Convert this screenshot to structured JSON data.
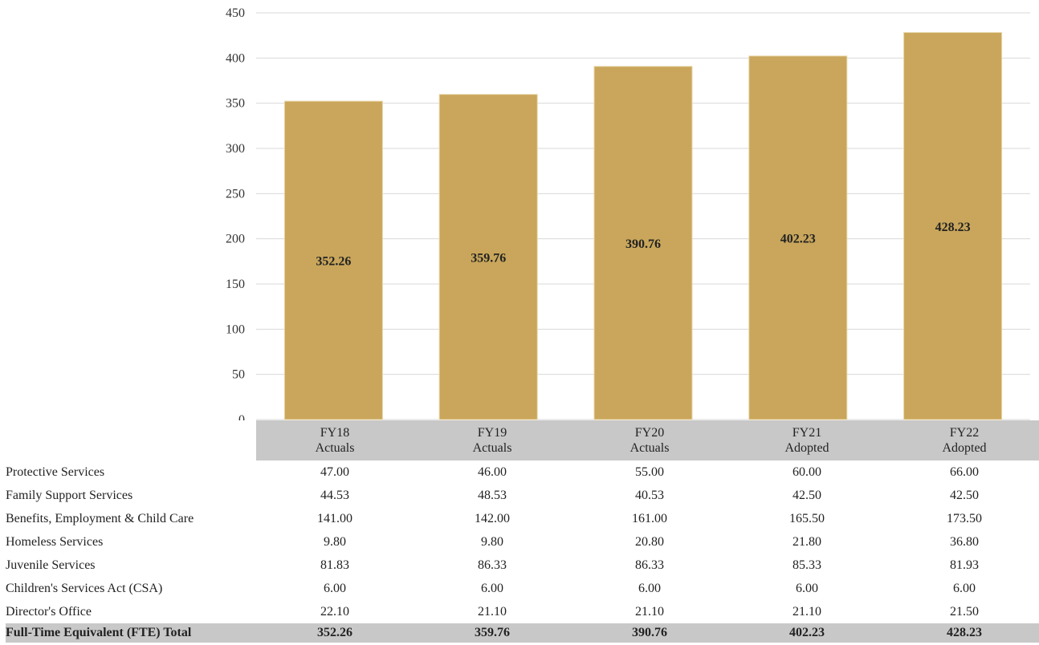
{
  "chart_data": {
    "type": "bar",
    "categories": [
      "FY18 Actuals",
      "FY19 Actuals",
      "FY20 Actuals",
      "FY21 Adopted",
      "FY22 Adopted"
    ],
    "category_lines": [
      [
        "FY18",
        "Actuals"
      ],
      [
        "FY19",
        "Actuals"
      ],
      [
        "FY20",
        "Actuals"
      ],
      [
        "FY21",
        "Adopted"
      ],
      [
        "FY22",
        "Adopted"
      ]
    ],
    "values": [
      352.26,
      359.76,
      390.76,
      402.23,
      428.23
    ],
    "value_labels": [
      "352.26",
      "359.76",
      "390.76",
      "402.23",
      "428.23"
    ],
    "ylim": [
      0,
      450
    ],
    "yticks": [
      0,
      50,
      100,
      150,
      200,
      250,
      300,
      350,
      400,
      450
    ],
    "grid": true,
    "bar_color": "#c9a65b"
  },
  "table": {
    "rows": [
      {
        "label": "Protective Services",
        "values": [
          "47.00",
          "46.00",
          "55.00",
          "60.00",
          "66.00"
        ]
      },
      {
        "label": "Family Support Services",
        "values": [
          "44.53",
          "48.53",
          "40.53",
          "42.50",
          "42.50"
        ]
      },
      {
        "label": "Benefits, Employment & Child Care",
        "values": [
          "141.00",
          "142.00",
          "161.00",
          "165.50",
          "173.50"
        ]
      },
      {
        "label": "Homeless Services",
        "values": [
          "9.80",
          "9.80",
          "20.80",
          "21.80",
          "36.80"
        ]
      },
      {
        "label": "Juvenile Services",
        "values": [
          "81.83",
          "86.33",
          "86.33",
          "85.33",
          "81.93"
        ]
      },
      {
        "label": "Children's Services Act (CSA)",
        "values": [
          "6.00",
          "6.00",
          "6.00",
          "6.00",
          "6.00"
        ]
      },
      {
        "label": "Director's Office",
        "values": [
          "22.10",
          "21.10",
          "21.10",
          "21.10",
          "21.50"
        ]
      }
    ],
    "total": {
      "label": "Full-Time Equivalent (FTE) Total",
      "values": [
        "352.26",
        "359.76",
        "390.76",
        "402.23",
        "428.23"
      ]
    }
  }
}
